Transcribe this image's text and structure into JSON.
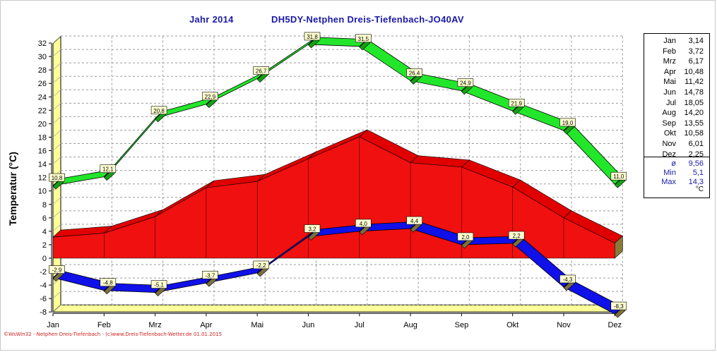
{
  "title": {
    "year": "Jahr  2014",
    "station": "DH5DY-Netphen Dreis-Tiefenbach-JO40AV"
  },
  "colors": {
    "max_band": "#22e62a",
    "min_band": "#1010e8",
    "mean_area": "#f01010",
    "wall": "#ffff99",
    "grid": "#9a9a9a",
    "label_box": "#ffffd0"
  },
  "footer": "©WsWin32 - Netphen Dreis-Tiefenbach - (c)www.Dreis-Tiefenbach-Wetter.de  01.01.2015",
  "chart_data": {
    "type": "area",
    "title": "Jahr  2014",
    "subtitle": "DH5DY-Netphen Dreis-Tiefenbach-JO40AV",
    "ylabel": "Temperatur  (°C)",
    "xlabel": "",
    "ylim": [
      -8,
      33
    ],
    "yticks": [
      -8,
      -6,
      -4,
      -2,
      0,
      2,
      4,
      6,
      8,
      10,
      12,
      14,
      16,
      18,
      20,
      22,
      24,
      26,
      28,
      30,
      32
    ],
    "grid": true,
    "categories": [
      "Jan",
      "Feb",
      "Mrz",
      "Apr",
      "Mai",
      "Jun",
      "Jul",
      "Aug",
      "Sep",
      "Okt",
      "Nov",
      "Dez"
    ],
    "series": [
      {
        "kind": "max",
        "values": [
          10.8,
          12.1,
          20.8,
          22.9,
          26.7,
          31.8,
          31.5,
          26.4,
          24.9,
          21.9,
          19.0,
          11.0
        ],
        "labels": [
          "10,8",
          "12,1",
          "20,8",
          "22,9",
          "26,7",
          "31,8",
          "31,5",
          "26,4",
          "24,9",
          "21,9",
          "19,0",
          "11,0"
        ]
      },
      {
        "kind": "mean",
        "values": [
          3.14,
          3.72,
          6.17,
          10.48,
          11.42,
          14.78,
          18.05,
          14.2,
          13.55,
          10.58,
          6.01,
          2.25
        ]
      },
      {
        "kind": "min",
        "values": [
          -2.9,
          -4.8,
          -5.1,
          -3.7,
          -2.2,
          3.2,
          4.0,
          4.4,
          2.0,
          2.2,
          -4.3,
          -8.3
        ],
        "labels": [
          "-2,9",
          "-4,8",
          "-5,1",
          "-3,7",
          "-2,2",
          "3,2",
          "4,0",
          "4,4",
          "2,0",
          "2,2",
          "-4,3",
          "-8,3"
        ]
      }
    ]
  },
  "legend": {
    "months": [
      {
        "m": "Jan",
        "v": "3,14"
      },
      {
        "m": "Feb",
        "v": "3,72"
      },
      {
        "m": "Mrz",
        "v": "6,17"
      },
      {
        "m": "Apr",
        "v": "10,48"
      },
      {
        "m": "Mai",
        "v": "11,42"
      },
      {
        "m": "Jun",
        "v": "14,78"
      },
      {
        "m": "Jul",
        "v": "18,05"
      },
      {
        "m": "Aug",
        "v": "14,20"
      },
      {
        "m": "Sep",
        "v": "13,55"
      },
      {
        "m": "Okt",
        "v": "10,58"
      },
      {
        "m": "Nov",
        "v": "6,01"
      },
      {
        "m": "Dez",
        "v": "2,25"
      }
    ],
    "stats": [
      {
        "m": "ø",
        "v": "9,56"
      },
      {
        "m": "Min",
        "v": "5,1"
      },
      {
        "m": "Max",
        "v": "14,3"
      }
    ],
    "unit": "°C"
  }
}
